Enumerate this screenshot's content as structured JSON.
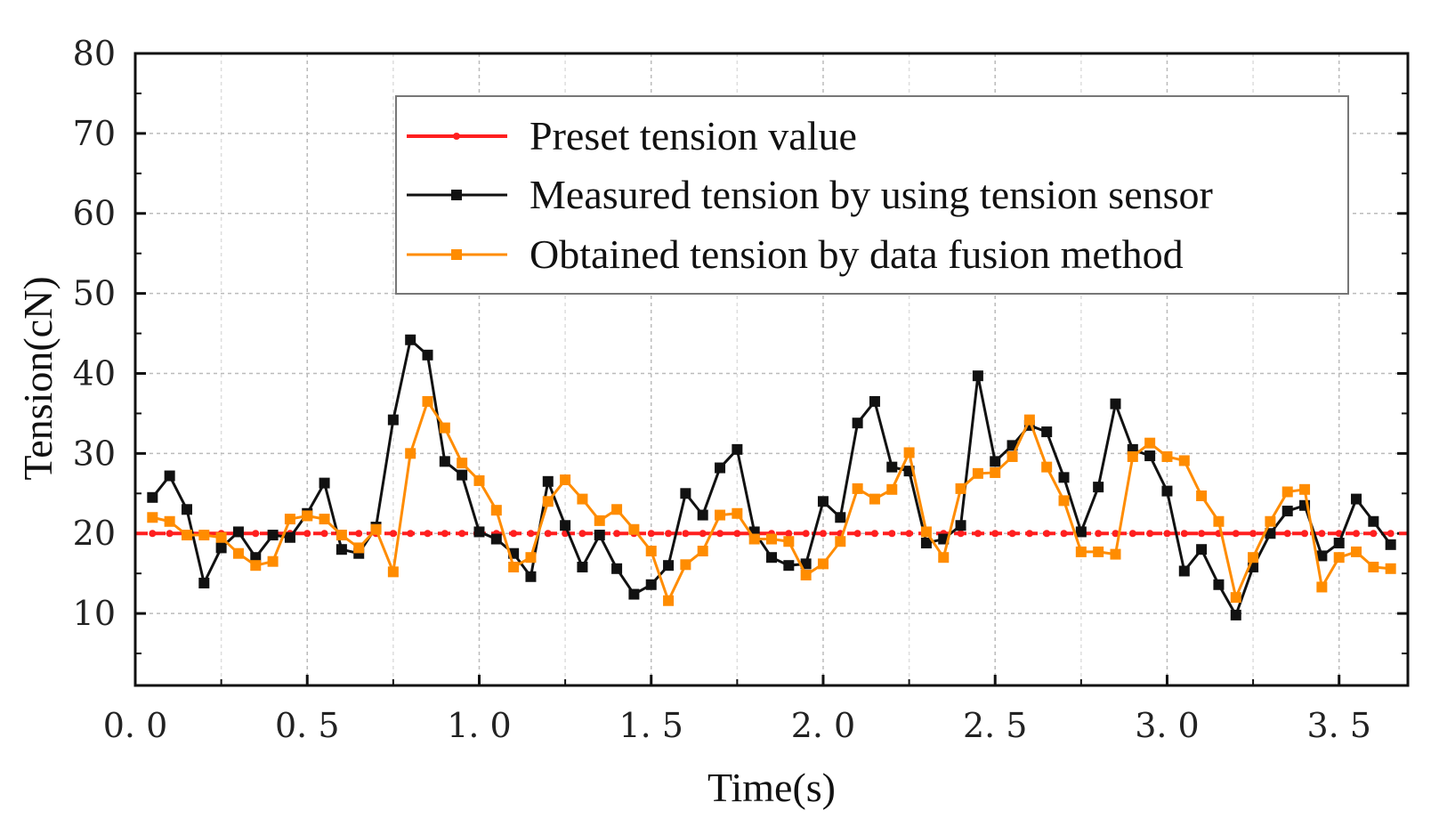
{
  "chart_data": {
    "type": "line",
    "title": "",
    "xlabel": "Time(s)",
    "ylabel": "Tension(cN)",
    "xlim": [
      0.0,
      3.7
    ],
    "ylim": [
      1,
      80
    ],
    "xticks": [
      0.0,
      0.5,
      1.0,
      1.5,
      2.0,
      2.5,
      3.0,
      3.5
    ],
    "xtick_labels": [
      "0. 0",
      "0. 5",
      "1. 0",
      "1. 5",
      "2. 0",
      "2. 5",
      "3. 0",
      "3. 5"
    ],
    "yticks": [
      10,
      20,
      30,
      40,
      50,
      60,
      70,
      80
    ],
    "ytick_labels": [
      "10",
      "20",
      "30",
      "40",
      "50",
      "60",
      "70",
      "80"
    ],
    "grid": true,
    "legend_position": "top-right",
    "x": [
      0.05,
      0.1,
      0.15,
      0.2,
      0.25,
      0.3,
      0.35,
      0.4,
      0.45,
      0.5,
      0.55,
      0.6,
      0.65,
      0.7,
      0.75,
      0.8,
      0.85,
      0.9,
      0.95,
      1.0,
      1.05,
      1.1,
      1.15,
      1.2,
      1.25,
      1.3,
      1.35,
      1.4,
      1.45,
      1.5,
      1.55,
      1.6,
      1.65,
      1.7,
      1.75,
      1.8,
      1.85,
      1.9,
      1.95,
      2.0,
      2.05,
      2.1,
      2.15,
      2.2,
      2.25,
      2.3,
      2.35,
      2.4,
      2.45,
      2.5,
      2.55,
      2.6,
      2.65,
      2.7,
      2.75,
      2.8,
      2.85,
      2.9,
      2.95,
      3.0,
      3.05,
      3.1,
      3.15,
      3.2,
      3.25,
      3.3,
      3.35,
      3.4,
      3.45,
      3.5,
      3.55,
      3.6,
      3.65
    ],
    "series": [
      {
        "name": "Preset tension value",
        "color": "#ff1f1f",
        "style": "dashed-with-dots",
        "values": [
          20,
          20,
          20,
          20,
          20,
          20,
          20,
          20,
          20,
          20,
          20,
          20,
          20,
          20,
          20,
          20,
          20,
          20,
          20,
          20,
          20,
          20,
          20,
          20,
          20,
          20,
          20,
          20,
          20,
          20,
          20,
          20,
          20,
          20,
          20,
          20,
          20,
          20,
          20,
          20,
          20,
          20,
          20,
          20,
          20,
          20,
          20,
          20,
          20,
          20,
          20,
          20,
          20,
          20,
          20,
          20,
          20,
          20,
          20,
          20,
          20,
          20,
          20,
          20,
          20,
          20,
          20,
          20,
          20,
          20,
          20,
          20,
          20
        ]
      },
      {
        "name": "Measured tension by using tension sensor",
        "color": "#111111",
        "style": "line-square-markers",
        "values": [
          24.5,
          27.2,
          23.0,
          13.8,
          18.2,
          20.2,
          17.0,
          19.8,
          19.5,
          22.5,
          26.3,
          18.0,
          17.5,
          20.8,
          34.2,
          44.2,
          42.3,
          29.0,
          27.3,
          20.2,
          19.3,
          17.5,
          14.6,
          26.5,
          21.0,
          15.8,
          19.8,
          15.6,
          12.4,
          13.6,
          16.0,
          25.0,
          22.3,
          28.2,
          30.5,
          20.2,
          17.0,
          16.0,
          16.2,
          24.0,
          22.0,
          33.8,
          36.5,
          28.3,
          27.8,
          18.8,
          19.3,
          21.0,
          39.7,
          29.0,
          31.0,
          33.5,
          32.7,
          27.0,
          20.2,
          25.8,
          36.2,
          30.5,
          29.7,
          25.3,
          15.3,
          18.0,
          13.6,
          9.8,
          15.8,
          20.0,
          22.8,
          23.5,
          17.2,
          18.8,
          24.3,
          21.5,
          18.6
        ]
      },
      {
        "name": "Obtained tension by data fusion method",
        "color": "#ff8c00",
        "style": "line-square-markers",
        "values": [
          22.0,
          21.5,
          19.8,
          19.8,
          19.5,
          17.5,
          16.0,
          16.5,
          21.8,
          22.2,
          21.8,
          19.8,
          18.2,
          20.5,
          15.2,
          30.0,
          36.5,
          33.2,
          28.8,
          26.6,
          22.9,
          15.8,
          17.0,
          24.0,
          26.7,
          24.3,
          21.6,
          23.0,
          20.5,
          17.8,
          11.6,
          16.1,
          17.8,
          22.3,
          22.5,
          19.3,
          19.3,
          19.0,
          14.8,
          16.2,
          19.0,
          25.6,
          24.3,
          25.5,
          30.1,
          20.2,
          17.0,
          25.6,
          27.5,
          27.6,
          29.6,
          34.2,
          28.3,
          24.1,
          17.7,
          17.7,
          17.4,
          29.6,
          31.3,
          29.6,
          29.1,
          24.7,
          21.5,
          12.0,
          17.0,
          21.5,
          25.2,
          25.5,
          13.3,
          17.0,
          17.7,
          15.8,
          15.6
        ]
      }
    ]
  }
}
